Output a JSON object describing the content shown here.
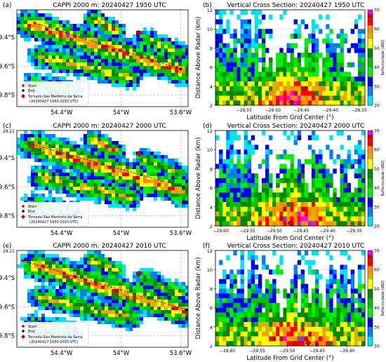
{
  "chart_data": [
    {
      "panel": "(a)",
      "type": "heatmap",
      "title": "CAPPI 2000 m: 20240427 1950 UTC",
      "x_ticks": [
        "54.4°W",
        "54°W",
        "53.6°W"
      ],
      "y_ticks": [
        "29.4°S",
        "29.6°S",
        "29.8°S"
      ],
      "legend": [
        "Start",
        "End",
        "Tornado-São Martinho da Serra",
        "(20240427 1950-2010 UTC)"
      ],
      "legend_position": "bottom-left",
      "tornado_marker": {
        "lon": -53.88,
        "lat": -29.37
      },
      "cross_section": {
        "start": {
          "lon": -54.58,
          "lat": -29.3
        },
        "end": {
          "lon": -53.6,
          "lat": -29.62
        }
      },
      "colors": {
        "low": "#00e5ee",
        "mid": "#00a000",
        "high": "#ff0000",
        "marker": "#cc0000"
      }
    },
    {
      "panel": "(b)",
      "type": "heatmap",
      "title": "Vertical Cross Section: 20240427 1950 UTC",
      "xlabel": "Latitude From Grid Center (°)",
      "ylabel": "Distance Above Radar (km)",
      "x_ticks": [
        "−29.55",
        "−29.50",
        "−29.45",
        "−29.40",
        "−29.35"
      ],
      "y_ticks": [
        "2",
        "4",
        "6",
        "8",
        "10",
        "12"
      ],
      "xlim": [
        -29.6,
        -29.34
      ],
      "ylim": [
        2,
        12
      ],
      "colorbar": {
        "label": "Reflectividade (dBZ)",
        "ticks": [
          "20",
          "30",
          "40",
          "50",
          "60",
          "70"
        ],
        "range": [
          20,
          70
        ]
      },
      "marker_lat": -29.468
    },
    {
      "panel": "(c)",
      "type": "heatmap",
      "title": "CAPPI 2000 m: 20240427 2000 UTC",
      "x_ticks": [
        "54.4°W",
        "54°W",
        "53.6°W"
      ],
      "y_ticks": [
        "29.21",
        "29.4°S",
        "29.6°S",
        "29.8°S"
      ],
      "legend": [
        "Start",
        "End",
        "Tornado-São Martinho da Serra",
        "(20240427 1950-2010 UTC)"
      ],
      "legend_position": "bottom-left",
      "tornado_marker": {
        "lon": -53.88,
        "lat": -29.37
      },
      "cross_section": {
        "start": {
          "lon": -54.62,
          "lat": -29.3
        },
        "end": {
          "lon": -53.58,
          "lat": -29.6
        }
      }
    },
    {
      "panel": "(d)",
      "type": "heatmap",
      "title": "Vertical Cross Section: 20240427 2000 UTC",
      "xlabel": "Latitude From Grid Center (°)",
      "ylabel": "Distance Above Radar (km)",
      "x_ticks": [
        "−29.60",
        "−29.55",
        "−29.50",
        "−29.45",
        "−29.40",
        "−29.35"
      ],
      "y_ticks": [
        "2",
        "4",
        "6",
        "8",
        "10",
        "12"
      ],
      "xlim": [
        -29.61,
        -29.33
      ],
      "ylim": [
        2,
        12
      ],
      "colorbar": {
        "label": "Reflectividade (dBZ)",
        "ticks": [
          "20",
          "30",
          "40",
          "50",
          "60",
          "70"
        ],
        "range": [
          20,
          70
        ]
      },
      "marker_lat": -29.47
    },
    {
      "panel": "(e)",
      "type": "heatmap",
      "title": "CAPPI 2000 m: 20240427 2010 UTC",
      "x_ticks": [
        "54.4°W",
        "54°W",
        "53.6°W"
      ],
      "y_ticks": [
        "29.21",
        "29.4°S",
        "29.6°S",
        "29.8°S"
      ],
      "legend": [
        "Start",
        "End",
        "Tornado-São Martinho da Serra",
        "(20240427 1950-2010 UTC)"
      ],
      "legend_position": "bottom-left",
      "tornado_marker": {
        "lon": -53.88,
        "lat": -29.37
      },
      "cross_section": {
        "start": {
          "lon": -54.66,
          "lat": -29.28
        },
        "end": {
          "lon": -53.56,
          "lat": -29.62
        }
      }
    },
    {
      "panel": "(f)",
      "type": "heatmap",
      "title": "Vertical Cross Section: 20240427 2010 UTC",
      "xlabel": "Latitude From Grid Center (°)",
      "ylabel": "Distance Above Radar (km)",
      "x_ticks": [
        "−29.60",
        "−29.55",
        "−29.50",
        "−29.45",
        "−29.40"
      ],
      "y_ticks": [
        "2",
        "4",
        "6",
        "8",
        "10",
        "12"
      ],
      "xlim": [
        -29.62,
        -29.37
      ],
      "ylim": [
        2,
        12
      ],
      "colorbar": {
        "label": "Reflectividade (dBZ)",
        "ticks": [
          "20",
          "30",
          "40",
          "50",
          "60",
          "70"
        ],
        "range": [
          20,
          70
        ]
      },
      "marker_lat": -29.465
    }
  ]
}
